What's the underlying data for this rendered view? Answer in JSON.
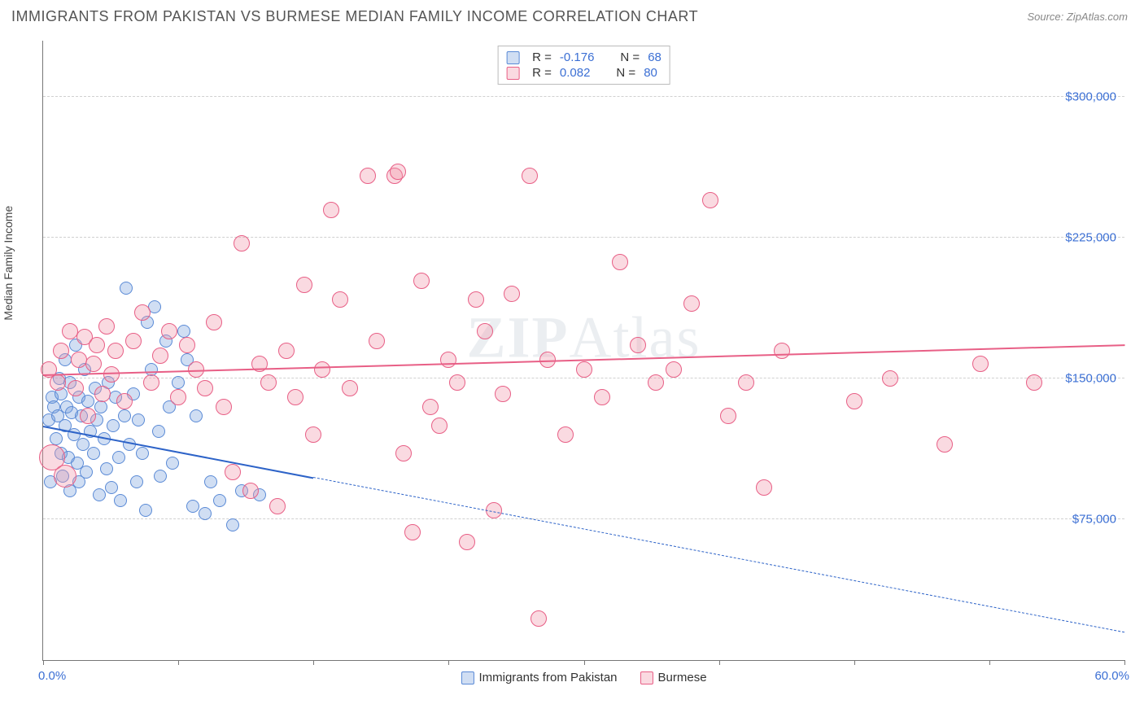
{
  "header": {
    "title": "IMMIGRANTS FROM PAKISTAN VS BURMESE MEDIAN FAMILY INCOME CORRELATION CHART",
    "source_prefix": "Source: ",
    "source_name": "ZipAtlas.com"
  },
  "watermark": {
    "bold": "ZIP",
    "thin": "Atlas"
  },
  "chart": {
    "type": "scatter",
    "ylabel": "Median Family Income",
    "xlim": [
      0,
      60
    ],
    "ylim": [
      0,
      330000
    ],
    "x_end_labels": {
      "min": "0.0%",
      "max": "60.0%"
    },
    "x_tick_positions_pct": [
      0,
      12.5,
      25,
      37.5,
      50,
      62.5,
      75,
      87.5,
      100
    ],
    "y_gridlines": [
      {
        "value": 75000,
        "label": "$75,000"
      },
      {
        "value": 150000,
        "label": "$150,000"
      },
      {
        "value": 225000,
        "label": "$225,000"
      },
      {
        "value": 300000,
        "label": "$300,000"
      }
    ],
    "grid_color": "#d0d0d0",
    "background_color": "#ffffff",
    "axis_color": "#777777",
    "series": [
      {
        "key": "pakistan",
        "label": "Immigrants from Pakistan",
        "fill": "rgba(120,160,220,0.35)",
        "stroke": "#5a8ad6",
        "marker_radius": 8,
        "stats": {
          "R": "-0.176",
          "N": "68"
        },
        "trend": {
          "color": "#2d63c8",
          "solid_from_x": 0,
          "solid_to_x": 15,
          "y_at_x0": 125000,
          "y_at_xmax": 15000,
          "dash_to_x": 60
        },
        "points": [
          {
            "x": 0.3,
            "y": 128000
          },
          {
            "x": 0.4,
            "y": 95000
          },
          {
            "x": 0.5,
            "y": 140000
          },
          {
            "x": 0.6,
            "y": 135000
          },
          {
            "x": 0.7,
            "y": 118000
          },
          {
            "x": 0.8,
            "y": 130000
          },
          {
            "x": 0.9,
            "y": 150000
          },
          {
            "x": 1.0,
            "y": 142000
          },
          {
            "x": 1.0,
            "y": 110000
          },
          {
            "x": 1.1,
            "y": 98000
          },
          {
            "x": 1.2,
            "y": 160000
          },
          {
            "x": 1.2,
            "y": 125000
          },
          {
            "x": 1.3,
            "y": 135000
          },
          {
            "x": 1.4,
            "y": 108000
          },
          {
            "x": 1.5,
            "y": 90000
          },
          {
            "x": 1.5,
            "y": 148000
          },
          {
            "x": 1.6,
            "y": 132000
          },
          {
            "x": 1.7,
            "y": 120000
          },
          {
            "x": 1.8,
            "y": 168000
          },
          {
            "x": 1.9,
            "y": 105000
          },
          {
            "x": 2.0,
            "y": 140000
          },
          {
            "x": 2.0,
            "y": 95000
          },
          {
            "x": 2.1,
            "y": 130000
          },
          {
            "x": 2.2,
            "y": 115000
          },
          {
            "x": 2.3,
            "y": 155000
          },
          {
            "x": 2.4,
            "y": 100000
          },
          {
            "x": 2.5,
            "y": 138000
          },
          {
            "x": 2.6,
            "y": 122000
          },
          {
            "x": 2.8,
            "y": 110000
          },
          {
            "x": 2.9,
            "y": 145000
          },
          {
            "x": 3.0,
            "y": 128000
          },
          {
            "x": 3.1,
            "y": 88000
          },
          {
            "x": 3.2,
            "y": 135000
          },
          {
            "x": 3.4,
            "y": 118000
          },
          {
            "x": 3.5,
            "y": 102000
          },
          {
            "x": 3.6,
            "y": 148000
          },
          {
            "x": 3.8,
            "y": 92000
          },
          {
            "x": 3.9,
            "y": 125000
          },
          {
            "x": 4.0,
            "y": 140000
          },
          {
            "x": 4.2,
            "y": 108000
          },
          {
            "x": 4.3,
            "y": 85000
          },
          {
            "x": 4.5,
            "y": 130000
          },
          {
            "x": 4.6,
            "y": 198000
          },
          {
            "x": 4.8,
            "y": 115000
          },
          {
            "x": 5.0,
            "y": 142000
          },
          {
            "x": 5.2,
            "y": 95000
          },
          {
            "x": 5.3,
            "y": 128000
          },
          {
            "x": 5.5,
            "y": 110000
          },
          {
            "x": 5.7,
            "y": 80000
          },
          {
            "x": 5.8,
            "y": 180000
          },
          {
            "x": 6.0,
            "y": 155000
          },
          {
            "x": 6.2,
            "y": 188000
          },
          {
            "x": 6.4,
            "y": 122000
          },
          {
            "x": 6.5,
            "y": 98000
          },
          {
            "x": 6.8,
            "y": 170000
          },
          {
            "x": 7.0,
            "y": 135000
          },
          {
            "x": 7.2,
            "y": 105000
          },
          {
            "x": 7.5,
            "y": 148000
          },
          {
            "x": 7.8,
            "y": 175000
          },
          {
            "x": 8.0,
            "y": 160000
          },
          {
            "x": 8.3,
            "y": 82000
          },
          {
            "x": 8.5,
            "y": 130000
          },
          {
            "x": 9.0,
            "y": 78000
          },
          {
            "x": 9.3,
            "y": 95000
          },
          {
            "x": 9.8,
            "y": 85000
          },
          {
            "x": 10.5,
            "y": 72000
          },
          {
            "x": 11.0,
            "y": 90000
          },
          {
            "x": 12.0,
            "y": 88000
          }
        ]
      },
      {
        "key": "burmese",
        "label": "Burmese",
        "fill": "rgba(240,150,170,0.35)",
        "stroke": "#e85f86",
        "marker_radius": 10,
        "stats": {
          "R": "0.082",
          "N": "80"
        },
        "trend": {
          "color": "#e85f86",
          "solid_from_x": 0,
          "solid_to_x": 60,
          "y_at_x0": 152000,
          "y_at_xmax": 168000,
          "dash_to_x": 60
        },
        "points": [
          {
            "x": 0.3,
            "y": 155000
          },
          {
            "x": 0.5,
            "y": 108000,
            "r": 16
          },
          {
            "x": 0.8,
            "y": 148000
          },
          {
            "x": 1.0,
            "y": 165000
          },
          {
            "x": 1.2,
            "y": 98000,
            "r": 14
          },
          {
            "x": 1.5,
            "y": 175000
          },
          {
            "x": 1.8,
            "y": 145000
          },
          {
            "x": 2.0,
            "y": 160000
          },
          {
            "x": 2.3,
            "y": 172000
          },
          {
            "x": 2.5,
            "y": 130000
          },
          {
            "x": 2.8,
            "y": 158000
          },
          {
            "x": 3.0,
            "y": 168000
          },
          {
            "x": 3.3,
            "y": 142000
          },
          {
            "x": 3.5,
            "y": 178000
          },
          {
            "x": 3.8,
            "y": 152000
          },
          {
            "x": 4.0,
            "y": 165000
          },
          {
            "x": 4.5,
            "y": 138000
          },
          {
            "x": 5.0,
            "y": 170000
          },
          {
            "x": 5.5,
            "y": 185000
          },
          {
            "x": 6.0,
            "y": 148000
          },
          {
            "x": 6.5,
            "y": 162000
          },
          {
            "x": 7.0,
            "y": 175000
          },
          {
            "x": 7.5,
            "y": 140000
          },
          {
            "x": 8.0,
            "y": 168000
          },
          {
            "x": 8.5,
            "y": 155000
          },
          {
            "x": 9.0,
            "y": 145000
          },
          {
            "x": 9.5,
            "y": 180000
          },
          {
            "x": 10.0,
            "y": 135000
          },
          {
            "x": 10.5,
            "y": 100000
          },
          {
            "x": 11.0,
            "y": 222000
          },
          {
            "x": 11.5,
            "y": 90000
          },
          {
            "x": 12.0,
            "y": 158000
          },
          {
            "x": 12.5,
            "y": 148000
          },
          {
            "x": 13.0,
            "y": 82000
          },
          {
            "x": 13.5,
            "y": 165000
          },
          {
            "x": 14.0,
            "y": 140000
          },
          {
            "x": 14.5,
            "y": 200000
          },
          {
            "x": 15.0,
            "y": 120000
          },
          {
            "x": 15.5,
            "y": 155000
          },
          {
            "x": 16.0,
            "y": 240000
          },
          {
            "x": 16.5,
            "y": 192000
          },
          {
            "x": 17.0,
            "y": 145000
          },
          {
            "x": 18.0,
            "y": 258000
          },
          {
            "x": 18.5,
            "y": 170000
          },
          {
            "x": 19.5,
            "y": 258000
          },
          {
            "x": 19.7,
            "y": 260000
          },
          {
            "x": 20.0,
            "y": 110000
          },
          {
            "x": 20.5,
            "y": 68000
          },
          {
            "x": 21.0,
            "y": 202000
          },
          {
            "x": 21.5,
            "y": 135000
          },
          {
            "x": 22.0,
            "y": 125000
          },
          {
            "x": 22.5,
            "y": 160000
          },
          {
            "x": 23.0,
            "y": 148000
          },
          {
            "x": 23.5,
            "y": 63000
          },
          {
            "x": 24.0,
            "y": 192000
          },
          {
            "x": 24.5,
            "y": 175000
          },
          {
            "x": 25.0,
            "y": 80000
          },
          {
            "x": 25.5,
            "y": 142000
          },
          {
            "x": 26.0,
            "y": 195000
          },
          {
            "x": 27.0,
            "y": 258000
          },
          {
            "x": 27.5,
            "y": 22000
          },
          {
            "x": 28.0,
            "y": 160000
          },
          {
            "x": 29.0,
            "y": 120000
          },
          {
            "x": 30.0,
            "y": 155000
          },
          {
            "x": 31.0,
            "y": 140000
          },
          {
            "x": 32.0,
            "y": 212000
          },
          {
            "x": 33.0,
            "y": 168000
          },
          {
            "x": 34.0,
            "y": 148000
          },
          {
            "x": 35.0,
            "y": 155000
          },
          {
            "x": 36.0,
            "y": 190000
          },
          {
            "x": 37.0,
            "y": 245000
          },
          {
            "x": 38.0,
            "y": 130000
          },
          {
            "x": 39.0,
            "y": 148000
          },
          {
            "x": 40.0,
            "y": 92000
          },
          {
            "x": 41.0,
            "y": 165000
          },
          {
            "x": 45.0,
            "y": 138000
          },
          {
            "x": 47.0,
            "y": 150000
          },
          {
            "x": 50.0,
            "y": 115000
          },
          {
            "x": 52.0,
            "y": 158000
          },
          {
            "x": 55.0,
            "y": 148000
          }
        ]
      }
    ],
    "legend": {
      "swatch_border_radius": 2
    },
    "stats_box": {
      "labels": {
        "R": "R =",
        "N": "N ="
      }
    }
  }
}
